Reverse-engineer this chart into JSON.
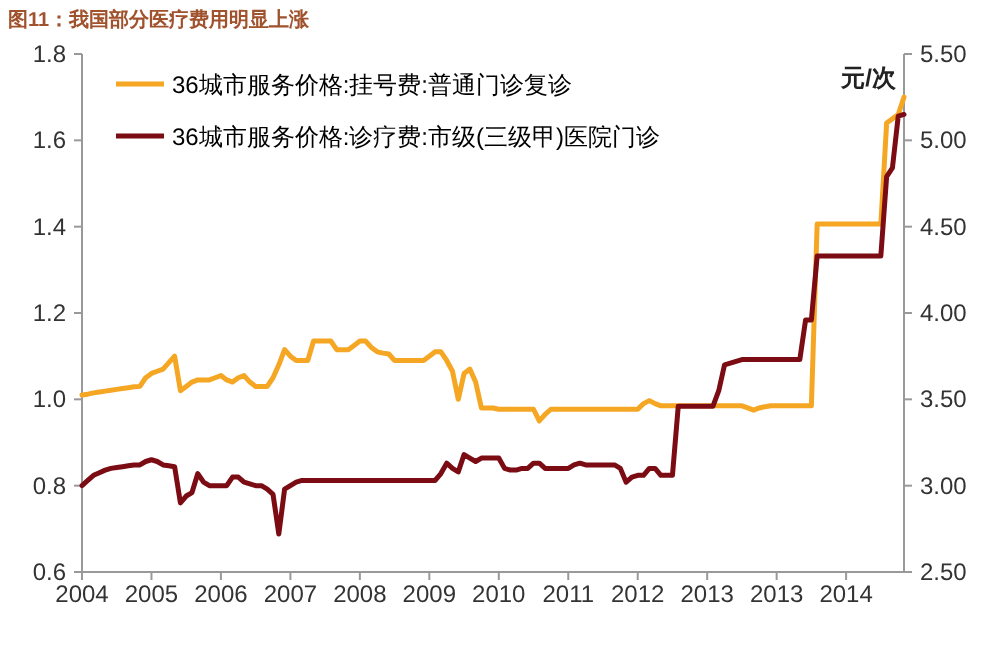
{
  "chart_data": {
    "type": "line",
    "title": "图11：我国部分医疗费用明显上涨",
    "y2label": "元/次",
    "legend": "top left",
    "grid": false,
    "line_style": "solid",
    "categories": [
      "2004",
      null,
      null,
      null,
      null,
      null,
      null,
      null,
      null,
      null,
      null,
      null,
      "2005",
      null,
      null,
      null,
      null,
      null,
      null,
      null,
      null,
      null,
      null,
      null,
      "2006",
      null,
      null,
      null,
      null,
      null,
      null,
      null,
      null,
      null,
      null,
      null,
      "2007",
      null,
      null,
      null,
      null,
      null,
      null,
      null,
      null,
      null,
      null,
      null,
      "2008",
      null,
      null,
      null,
      null,
      null,
      null,
      null,
      null,
      null,
      null,
      null,
      "2009",
      null,
      null,
      null,
      null,
      null,
      null,
      null,
      null,
      null,
      null,
      null,
      "2010",
      null,
      null,
      null,
      null,
      null,
      null,
      null,
      null,
      null,
      null,
      null,
      "2011",
      null,
      null,
      null,
      null,
      null,
      null,
      null,
      null,
      null,
      null,
      null,
      "2012",
      null,
      null,
      null,
      null,
      null,
      null,
      null,
      null,
      null,
      null,
      null,
      "2013",
      null,
      null,
      null,
      null,
      null,
      null,
      null,
      null,
      null,
      null,
      null,
      "2013",
      null,
      null,
      null,
      null,
      null,
      null,
      null,
      null,
      null,
      null,
      null,
      "2014",
      null,
      null,
      null,
      null,
      null,
      null,
      null,
      null,
      null,
      null
    ],
    "series": [
      {
        "name": "36城市服务价格:挂号费:普通门诊复诊",
        "color": "#f5a623",
        "values": [
          1.01,
          1.012,
          1.015,
          1.017,
          1.019,
          1.021,
          1.023,
          1.025,
          1.027,
          1.029,
          1.03,
          1.05,
          1.06,
          1.065,
          1.07,
          1.085,
          1.1,
          1.02,
          1.03,
          1.04,
          1.045,
          1.045,
          1.045,
          1.05,
          1.055,
          1.045,
          1.04,
          1.05,
          1.055,
          1.04,
          1.03,
          1.03,
          1.03,
          1.05,
          1.08,
          1.115,
          1.1,
          1.09,
          1.09,
          1.09,
          1.135,
          1.135,
          1.135,
          1.135,
          1.115,
          1.115,
          1.115,
          1.125,
          1.135,
          1.135,
          1.12,
          1.11,
          1.107,
          1.105,
          1.09,
          1.09,
          1.09,
          1.09,
          1.09,
          1.09,
          1.1,
          1.11,
          1.11,
          1.09,
          1.065,
          1.0,
          1.06,
          1.07,
          1.04,
          0.98,
          0.98,
          0.98,
          0.977,
          0.977,
          0.977,
          0.977,
          0.977,
          0.977,
          0.977,
          0.95,
          0.965,
          0.977,
          0.977,
          0.977,
          0.977,
          0.977,
          0.977,
          0.977,
          0.977,
          0.977,
          0.977,
          0.977,
          0.977,
          0.977,
          0.977,
          0.977,
          0.977,
          0.99,
          0.997,
          0.99,
          0.985,
          0.985,
          0.985,
          0.985,
          0.985,
          0.985,
          0.985,
          0.985,
          0.985,
          0.985,
          0.985,
          0.985,
          0.985,
          0.985,
          0.985,
          0.98,
          0.975,
          0.98,
          0.983,
          0.985,
          0.985,
          0.985,
          0.985,
          0.985,
          0.985,
          0.985,
          0.985,
          1.406,
          1.406,
          1.406,
          1.406,
          1.406,
          1.406,
          1.406,
          1.406,
          1.406,
          1.406,
          1.406,
          1.406,
          1.64,
          1.65,
          1.66,
          1.7
        ]
      },
      {
        "name": "36城市服务价格:诊疗费:市级(三级甲)医院门诊",
        "color": "#7b0c13",
        "axis": "y2",
        "values": [
          3.0,
          3.03,
          3.06,
          3.075,
          3.09,
          3.1,
          3.105,
          3.11,
          3.115,
          3.12,
          3.12,
          3.14,
          3.15,
          3.14,
          3.12,
          3.115,
          3.11,
          2.9,
          2.94,
          2.96,
          3.07,
          3.02,
          3.0,
          3.0,
          3.0,
          3.0,
          3.05,
          3.05,
          3.02,
          3.01,
          3.0,
          3.0,
          2.98,
          2.95,
          2.72,
          2.98,
          3.0,
          3.02,
          3.03,
          3.03,
          3.03,
          3.03,
          3.03,
          3.03,
          3.03,
          3.03,
          3.03,
          3.03,
          3.03,
          3.03,
          3.03,
          3.03,
          3.03,
          3.03,
          3.03,
          3.03,
          3.03,
          3.03,
          3.03,
          3.03,
          3.03,
          3.03,
          3.07,
          3.13,
          3.1,
          3.08,
          3.18,
          3.16,
          3.14,
          3.16,
          3.16,
          3.16,
          3.16,
          3.1,
          3.09,
          3.09,
          3.1,
          3.1,
          3.13,
          3.13,
          3.1,
          3.1,
          3.1,
          3.1,
          3.1,
          3.12,
          3.13,
          3.12,
          3.12,
          3.12,
          3.12,
          3.12,
          3.12,
          3.1,
          3.02,
          3.05,
          3.06,
          3.06,
          3.1,
          3.1,
          3.06,
          3.06,
          3.06,
          3.46,
          3.46,
          3.46,
          3.46,
          3.46,
          3.46,
          3.46,
          3.55,
          3.7,
          3.71,
          3.72,
          3.73,
          3.73,
          3.73,
          3.73,
          3.73,
          3.73,
          3.73,
          3.73,
          3.73,
          3.73,
          3.73,
          3.96,
          3.96,
          4.33,
          4.33,
          4.33,
          4.33,
          4.33,
          4.33,
          4.33,
          4.33,
          4.33,
          4.33,
          4.33,
          4.33,
          4.79,
          4.84,
          5.14,
          5.15
        ]
      }
    ],
    "ylim": [
      0.6,
      1.8
    ],
    "yticks": [
      0.6,
      0.8,
      {
        "value": 1,
        "label": "1.0"
      },
      1.2,
      1.4,
      1.6,
      1.8
    ],
    "y2lim": [
      2.5,
      5.5
    ],
    "y2ticks": [
      {
        "value": 2.5,
        "label": "2.50"
      },
      {
        "value": 3,
        "label": "3.00"
      },
      {
        "value": 3.5,
        "label": "3.50"
      },
      {
        "value": 4,
        "label": "4.00"
      },
      {
        "value": 4.5,
        "label": "4.50"
      },
      {
        "value": 5,
        "label": "5.00"
      },
      {
        "value": 5.5,
        "label": "5.50"
      }
    ]
  }
}
